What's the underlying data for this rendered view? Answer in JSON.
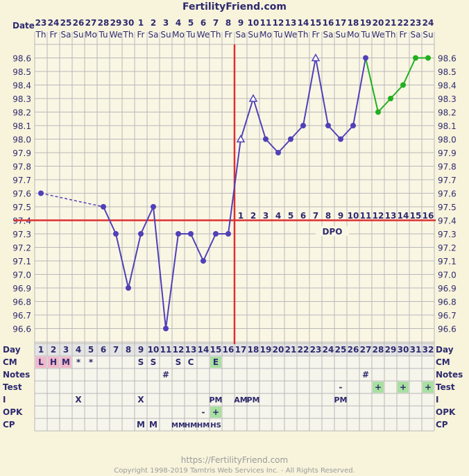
{
  "title": "FertilityFriend.com",
  "labels": {
    "date": "Date",
    "day": "Day",
    "cm": "CM",
    "notes": "Notes",
    "test": "Test",
    "intercourse": "I",
    "opk": "OPK",
    "cp": "CP",
    "dpo": "DPO"
  },
  "footer": {
    "url": "https://FertilityFriend.com",
    "copyright": "Copyright 1998-2019 Tamtris Web Services Inc. - All Rights Reserved."
  },
  "colors": {
    "grid": "#b8b8b8",
    "line": "#5040b8",
    "future_line": "#20b020",
    "coverline": "#dd3030",
    "background": "#f8f4dc",
    "text": "#2e2a6e",
    "pink_cell": "#f2b8cc",
    "green_cell": "#a8e0a0",
    "gray_cell": "#e4e4e4"
  },
  "chart_data": {
    "type": "line",
    "title": "FertilityFriend.com",
    "xlabel": "Day",
    "ylabel": "",
    "ylim": [
      96.5,
      98.7
    ],
    "y_ticks": [
      "98.6",
      "98.5",
      "98.4",
      "98.3",
      "98.2",
      "98.1",
      "98.0",
      "97.9",
      "97.8",
      "97.7",
      "97.6",
      "97.5",
      "97.4",
      "97.3",
      "97.2",
      "97.1",
      "97.0",
      "96.9",
      "96.8",
      "96.7",
      "96.6"
    ],
    "dates": [
      "23",
      "24",
      "25",
      "26",
      "27",
      "28",
      "29",
      "30",
      "1",
      "2",
      "3",
      "4",
      "5",
      "6",
      "7",
      "8",
      "9",
      "10",
      "11",
      "12",
      "13",
      "14",
      "15",
      "16",
      "17",
      "18",
      "19",
      "20",
      "21",
      "22",
      "23",
      "24"
    ],
    "weekdays": [
      "Th",
      "Fr",
      "Sa",
      "Su",
      "Mo",
      "Tu",
      "We",
      "Th",
      "Fr",
      "Sa",
      "Su",
      "Mo",
      "Tu",
      "We",
      "Th",
      "Fr",
      "Sa",
      "Su",
      "Mo",
      "Tu",
      "We",
      "Th",
      "Fr",
      "Sa",
      "Su",
      "Mo",
      "Tu",
      "We",
      "Th",
      "Fr",
      "Sa",
      "Su"
    ],
    "cycle_days": [
      "1",
      "2",
      "3",
      "4",
      "5",
      "6",
      "7",
      "8",
      "9",
      "10",
      "11",
      "12",
      "13",
      "14",
      "15",
      "16",
      "17",
      "18",
      "19",
      "20",
      "21",
      "22",
      "23",
      "24",
      "25",
      "26",
      "27",
      "28",
      "29",
      "30",
      "31",
      "32"
    ],
    "dpo_labels": [
      "1",
      "2",
      "3",
      "4",
      "5",
      "6",
      "7",
      "8",
      "9",
      "10",
      "11",
      "12",
      "13",
      "14",
      "15",
      "16"
    ],
    "dpo_start_day": 17,
    "coverline": 97.4,
    "ovulation_day": 16,
    "temps": [
      {
        "day": 1,
        "temp": 97.6
      },
      {
        "day": 6,
        "temp": 97.5
      },
      {
        "day": 7,
        "temp": 97.3
      },
      {
        "day": 8,
        "temp": 96.9
      },
      {
        "day": 9,
        "temp": 97.3
      },
      {
        "day": 10,
        "temp": 97.5
      },
      {
        "day": 11,
        "temp": 96.6
      },
      {
        "day": 12,
        "temp": 97.3
      },
      {
        "day": 13,
        "temp": 97.3
      },
      {
        "day": 14,
        "temp": 97.1
      },
      {
        "day": 15,
        "temp": 97.3
      },
      {
        "day": 16,
        "temp": 97.3
      },
      {
        "day": 17,
        "temp": 98.0,
        "marker": "triangle"
      },
      {
        "day": 18,
        "temp": 98.3,
        "marker": "triangle"
      },
      {
        "day": 19,
        "temp": 98.0
      },
      {
        "day": 20,
        "temp": 97.9
      },
      {
        "day": 21,
        "temp": 98.0
      },
      {
        "day": 22,
        "temp": 98.1
      },
      {
        "day": 23,
        "temp": 98.6,
        "marker": "triangle"
      },
      {
        "day": 24,
        "temp": 98.1
      },
      {
        "day": 25,
        "temp": 98.0
      },
      {
        "day": 26,
        "temp": 98.1
      },
      {
        "day": 27,
        "temp": 98.6
      }
    ],
    "future_temps": [
      {
        "day": 27,
        "temp": 98.6
      },
      {
        "day": 28,
        "temp": 98.2
      },
      {
        "day": 29,
        "temp": 98.3
      },
      {
        "day": 30,
        "temp": 98.4
      },
      {
        "day": 31,
        "temp": 98.6
      },
      {
        "day": 32,
        "temp": 98.6
      }
    ],
    "dashed_segment_days": [
      1,
      6
    ],
    "rows": {
      "cm": {
        "1": "L",
        "2": "H",
        "3": "M",
        "4": "*",
        "5": "*",
        "9": "S",
        "10": "S",
        "12": "S",
        "13": "C",
        "15": "E"
      },
      "notes": {
        "11": "#",
        "27": "#"
      },
      "test": {
        "25": "-",
        "28": "+",
        "30": "+",
        "32": "+"
      },
      "intercourse": {
        "4": "X",
        "9": "X",
        "15": "PM",
        "17": "AM",
        "18": "PM",
        "25": "PM"
      },
      "opk": {
        "14": "-",
        "15": "+"
      },
      "cp": {
        "9": "M",
        "10": "M",
        "12": "MM",
        "13": "HM",
        "14": "HM",
        "15": "HS"
      }
    },
    "cell_fills": {
      "cm": {
        "1": "pink",
        "2": "pink",
        "3": "pink",
        "15": "green"
      },
      "test": {
        "28": "green",
        "30": "green",
        "32": "green"
      },
      "opk": {
        "15": "green"
      }
    }
  }
}
